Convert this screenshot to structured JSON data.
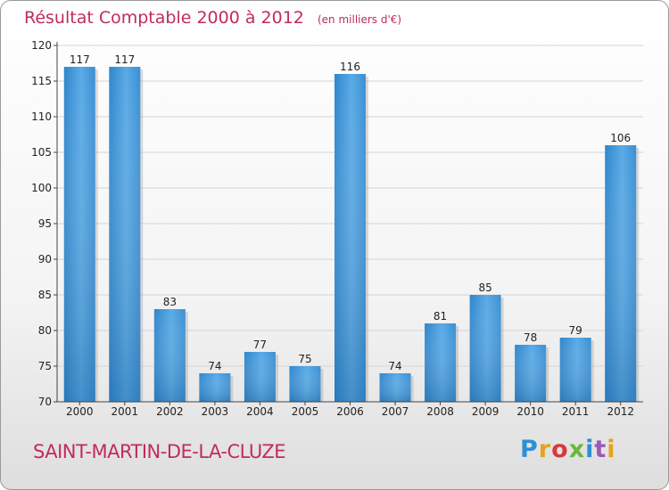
{
  "chart_data": {
    "type": "bar",
    "title": "Résultat Comptable 2000 à 2012",
    "unit": "(en milliers d'€)",
    "categories": [
      "2000",
      "2001",
      "2002",
      "2003",
      "2004",
      "2005",
      "2006",
      "2007",
      "2008",
      "2009",
      "2010",
      "2011",
      "2012"
    ],
    "values": [
      117,
      117,
      83,
      74,
      77,
      75,
      116,
      74,
      81,
      85,
      78,
      79,
      106
    ],
    "ylim": [
      70,
      120
    ],
    "yticks": [
      70,
      75,
      80,
      85,
      90,
      95,
      100,
      105,
      110,
      115,
      120
    ],
    "xlabel": "",
    "ylabel": "",
    "grid": true,
    "bar_color": "#3a93d6"
  },
  "commune": "SAINT-MARTIN-DE-LA-CLUZE",
  "brand": [
    "P",
    "r",
    "o",
    "x",
    "i",
    "t",
    "i"
  ]
}
